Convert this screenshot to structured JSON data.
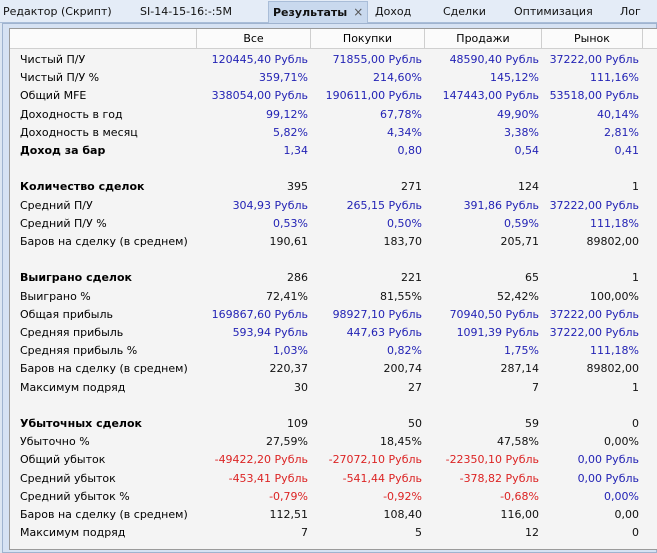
{
  "tabs": [
    {
      "label": "Редактор (Скрипт)",
      "active": false
    },
    {
      "label": "SI-14-15-16:-:5M",
      "active": false
    },
    {
      "label": "Результаты",
      "active": true,
      "close_icon": "×"
    },
    {
      "label": "Доход",
      "active": false
    },
    {
      "label": "Сделки",
      "active": false
    },
    {
      "label": "Оптимизация",
      "active": false
    },
    {
      "label": "Лог",
      "active": false
    }
  ],
  "columns": [
    "",
    "Все",
    "Покупки",
    "Продажи",
    "Рынок"
  ],
  "colors": {
    "positive": "#2323b5",
    "negative": "#dc2424",
    "neutral": "#111111"
  },
  "rows": [
    {
      "label": "Чистый П/У",
      "bold": false,
      "values": [
        "120445,40 Рубль",
        "71855,00 Рубль",
        "48590,40 Рубль",
        "37222,00 Рубль"
      ],
      "colors": [
        "blue",
        "blue",
        "blue",
        "blue"
      ]
    },
    {
      "label": "Чистый П/У %",
      "bold": false,
      "values": [
        "359,71%",
        "214,60%",
        "145,12%",
        "111,16%"
      ],
      "colors": [
        "blue",
        "blue",
        "blue",
        "blue"
      ]
    },
    {
      "label": "Общий MFE",
      "bold": false,
      "values": [
        "338054,00 Рубль",
        "190611,00 Рубль",
        "147443,00 Рубль",
        "53518,00 Рубль"
      ],
      "colors": [
        "blue",
        "blue",
        "blue",
        "blue"
      ]
    },
    {
      "label": "Доходность в год",
      "bold": false,
      "values": [
        "99,12%",
        "67,78%",
        "49,90%",
        "40,14%"
      ],
      "colors": [
        "blue",
        "blue",
        "blue",
        "blue"
      ]
    },
    {
      "label": "Доходность в месяц",
      "bold": false,
      "values": [
        "5,82%",
        "4,34%",
        "3,38%",
        "2,81%"
      ],
      "colors": [
        "blue",
        "blue",
        "blue",
        "blue"
      ]
    },
    {
      "label": "Доход за бар",
      "bold": true,
      "values": [
        "1,34",
        "0,80",
        "0,54",
        "0,41"
      ],
      "colors": [
        "blue",
        "blue",
        "blue",
        "blue"
      ]
    },
    null,
    {
      "label": "Количество сделок",
      "bold": true,
      "values": [
        "395",
        "271",
        "124",
        "1"
      ],
      "colors": [
        "black",
        "black",
        "black",
        "black"
      ]
    },
    {
      "label": "Средний П/У",
      "bold": false,
      "values": [
        "304,93 Рубль",
        "265,15 Рубль",
        "391,86 Рубль",
        "37222,00 Рубль"
      ],
      "colors": [
        "blue",
        "blue",
        "blue",
        "blue"
      ]
    },
    {
      "label": "Средний П/У %",
      "bold": false,
      "values": [
        "0,53%",
        "0,50%",
        "0,59%",
        "111,18%"
      ],
      "colors": [
        "blue",
        "blue",
        "blue",
        "blue"
      ]
    },
    {
      "label": "Баров на сделку (в среднем)",
      "bold": false,
      "values": [
        "190,61",
        "183,70",
        "205,71",
        "89802,00"
      ],
      "colors": [
        "black",
        "black",
        "black",
        "black"
      ]
    },
    null,
    {
      "label": "Выиграно сделок",
      "bold": true,
      "values": [
        "286",
        "221",
        "65",
        "1"
      ],
      "colors": [
        "black",
        "black",
        "black",
        "black"
      ]
    },
    {
      "label": "Выиграно %",
      "bold": false,
      "values": [
        "72,41%",
        "81,55%",
        "52,42%",
        "100,00%"
      ],
      "colors": [
        "black",
        "black",
        "black",
        "black"
      ]
    },
    {
      "label": "Общая прибыль",
      "bold": false,
      "values": [
        "169867,60 Рубль",
        "98927,10 Рубль",
        "70940,50 Рубль",
        "37222,00 Рубль"
      ],
      "colors": [
        "blue",
        "blue",
        "blue",
        "blue"
      ]
    },
    {
      "label": "Средняя прибыль",
      "bold": false,
      "values": [
        "593,94 Рубль",
        "447,63 Рубль",
        "1091,39 Рубль",
        "37222,00 Рубль"
      ],
      "colors": [
        "blue",
        "blue",
        "blue",
        "blue"
      ]
    },
    {
      "label": "Средняя прибыль %",
      "bold": false,
      "values": [
        "1,03%",
        "0,82%",
        "1,75%",
        "111,18%"
      ],
      "colors": [
        "blue",
        "blue",
        "blue",
        "blue"
      ]
    },
    {
      "label": "Баров на сделку (в среднем)",
      "bold": false,
      "values": [
        "220,37",
        "200,74",
        "287,14",
        "89802,00"
      ],
      "colors": [
        "black",
        "black",
        "black",
        "black"
      ]
    },
    {
      "label": "Максимум подряд",
      "bold": false,
      "values": [
        "30",
        "27",
        "7",
        "1"
      ],
      "colors": [
        "black",
        "black",
        "black",
        "black"
      ]
    },
    null,
    {
      "label": "Убыточных сделок",
      "bold": true,
      "values": [
        "109",
        "50",
        "59",
        "0"
      ],
      "colors": [
        "black",
        "black",
        "black",
        "black"
      ]
    },
    {
      "label": "Убыточно %",
      "bold": false,
      "values": [
        "27,59%",
        "18,45%",
        "47,58%",
        "0,00%"
      ],
      "colors": [
        "black",
        "black",
        "black",
        "black"
      ]
    },
    {
      "label": "Общий убыток",
      "bold": false,
      "values": [
        "-49422,20 Рубль",
        "-27072,10 Рубль",
        "-22350,10 Рубль",
        "0,00 Рубль"
      ],
      "colors": [
        "red",
        "red",
        "red",
        "blue"
      ]
    },
    {
      "label": "Средний убыток",
      "bold": false,
      "values": [
        "-453,41 Рубль",
        "-541,44 Рубль",
        "-378,82 Рубль",
        "0,00 Рубль"
      ],
      "colors": [
        "red",
        "red",
        "red",
        "blue"
      ]
    },
    {
      "label": "Средний убыток %",
      "bold": false,
      "values": [
        "-0,79%",
        "-0,92%",
        "-0,68%",
        "0,00%"
      ],
      "colors": [
        "red",
        "red",
        "red",
        "blue"
      ]
    },
    {
      "label": "Баров на сделку (в среднем)",
      "bold": false,
      "values": [
        "112,51",
        "108,40",
        "116,00",
        "0,00"
      ],
      "colors": [
        "black",
        "black",
        "black",
        "black"
      ]
    },
    {
      "label": "Максимум подряд",
      "bold": false,
      "values": [
        "7",
        "5",
        "12",
        "0"
      ],
      "colors": [
        "black",
        "black",
        "black",
        "black"
      ]
    }
  ]
}
